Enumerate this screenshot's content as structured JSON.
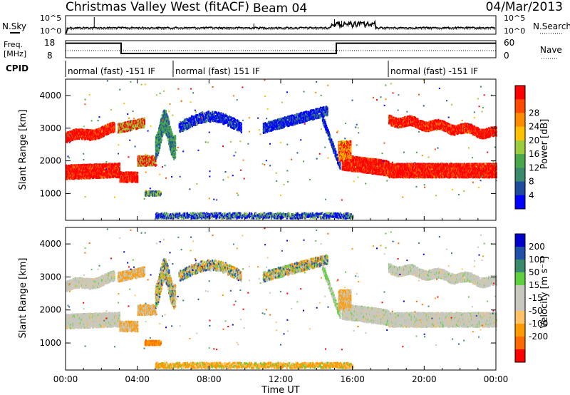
{
  "header": {
    "station": "Christmas Valley West (fitACF)",
    "beam": "Beam 04",
    "date": "04/Mar/2013"
  },
  "noise_panel": {
    "left_label": "N.Sky",
    "right_label": "N.Search",
    "ticks": [
      "10^5",
      "10^0"
    ]
  },
  "freq_panel": {
    "left_label_1": "Freq.",
    "left_label_2": "[MHz]",
    "left_ticks": [
      "18",
      "8"
    ],
    "right_label": "Nave",
    "right_ticks": [
      "60",
      "0"
    ]
  },
  "cpid": {
    "label": "CPID",
    "segments": [
      {
        "text": "normal (fast) -151 IF",
        "start_hr": 0,
        "end_hr": 6.0
      },
      {
        "text": "normal (fast) 151 IF",
        "start_hr": 6.0,
        "end_hr": 18.0
      },
      {
        "text": "normal (fast) -151 IF",
        "start_hr": 18.0,
        "end_hr": 24
      }
    ]
  },
  "colors": {
    "power_scale": [
      "#0000ff",
      "#204ca0",
      "#3a8a6e",
      "#49a84a",
      "#9ccc3c",
      "#ffc000",
      "#ff8c00",
      "#ff4a00",
      "#ff0000"
    ],
    "velocity_scale": [
      "#ff0000",
      "#ff6a00",
      "#ff9a00",
      "#ffc266",
      "#c8c8c0",
      "#c8c8c0",
      "#60d040",
      "#3a8a6e",
      "#2050a8",
      "#0000cc"
    ],
    "ground": "#c8c8c0"
  },
  "chart_data": [
    {
      "type": "line",
      "name": "noise",
      "title": "",
      "series": [
        {
          "name": "N.Sky"
        },
        {
          "name": "N.Search"
        }
      ]
    },
    {
      "type": "line",
      "name": "frequency",
      "series": [
        {
          "name": "Freq.",
          "x": [
            0,
            3.1,
            3.1,
            15.1,
            15.1,
            24
          ],
          "y": [
            16.5,
            16.5,
            10.5,
            10.5,
            16.5,
            16.5
          ]
        }
      ],
      "ylim": [
        8,
        18
      ]
    },
    {
      "type": "heatmap",
      "name": "power",
      "ylabel": "Slant Range [km]",
      "yticks": [
        "1000",
        "2000",
        "3000",
        "4000"
      ],
      "ylim": [
        180,
        4500
      ],
      "colorbar_label": "Power [dB]",
      "colorbar_ticks": [
        "4",
        "8",
        "12",
        "16",
        "20",
        "24",
        "28"
      ]
    },
    {
      "type": "heatmap",
      "name": "velocity",
      "xlabel": "Time UT",
      "ylabel": "Slant Range [km]",
      "xticks": [
        "00:00",
        "04:00",
        "08:00",
        "12:00",
        "16:00",
        "20:00",
        "00:00"
      ],
      "xlim": [
        0,
        24
      ],
      "yticks": [
        "1000",
        "2000",
        "3000",
        "4000"
      ],
      "ylim": [
        180,
        4500
      ],
      "colorbar_label": "Velocity [m s⁻¹]",
      "colorbar_ticks": [
        "200",
        "100",
        "50",
        "15",
        "-15",
        "-50",
        "-100",
        "-200"
      ]
    }
  ]
}
